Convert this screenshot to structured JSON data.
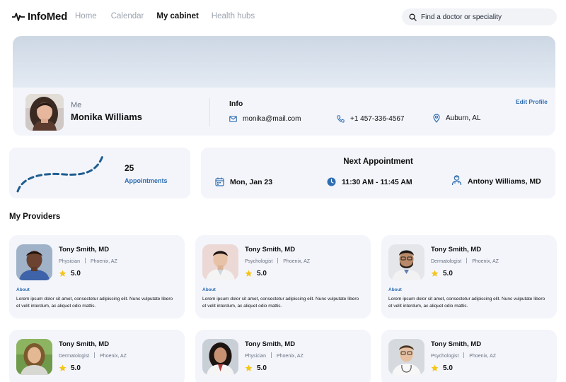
{
  "app": {
    "name": "InfoMed"
  },
  "nav": [
    {
      "label": "Home"
    },
    {
      "label": "Calendar"
    },
    {
      "label": "My cabinet"
    },
    {
      "label": "Health hubs"
    }
  ],
  "nav_active": "My cabinet",
  "search": {
    "placeholder": "Find a doctor or speciality",
    "value": ""
  },
  "profile": {
    "me_label": "Me",
    "name": "Monika Williams",
    "info_title": "Info",
    "edit_label": "Edit Profile",
    "email": "monika@mail.com",
    "phone": "+1 457-336-4567",
    "location": "Auburn, AL"
  },
  "stats": {
    "count": "25",
    "label": "Appointments"
  },
  "next_appointment": {
    "title": "Next Appointment",
    "date": "Mon, Jan 23",
    "time": "11:30 AM - 11:45 AM",
    "doctor": "Antony Williams, MD"
  },
  "providers_section": {
    "title": "My Providers"
  },
  "providers": [
    {
      "name": "Tony Smith, MD",
      "specialty": "Physician",
      "location": "Phoenix, AZ",
      "rating": "5.0",
      "about_label": "About",
      "description": "Lorem ipsum dolor sit amet, consectetur adipiscing elit. Nunc vulputate libero et velit interdum, ac aliquet odio mattis."
    },
    {
      "name": "Tony Smith, MD",
      "specialty": "Psychologist",
      "location": "Phoenix, AZ",
      "rating": "5.0",
      "about_label": "About",
      "description": "Lorem ipsum dolor sit amet, consectetur adipiscing elit. Nunc vulputate libero et velit interdum, ac aliquet odio mattis."
    },
    {
      "name": "Tony Smith, MD",
      "specialty": "Dermatologist",
      "location": "Phoenix, AZ",
      "rating": "5.0",
      "about_label": "About",
      "description": "Lorem ipsum dolor sit amet, consectetur adipiscing elit. Nunc vulputate libero et velit interdum, ac aliquet odio mattis."
    },
    {
      "name": "Tony Smith, MD",
      "specialty": "Dermatologist",
      "location": "Phoenix, AZ",
      "rating": "5.0"
    },
    {
      "name": "Tony Smith, MD",
      "specialty": "Physician",
      "location": "Phoenix, AZ",
      "rating": "5.0"
    },
    {
      "name": "Tony Smith, MD",
      "specialty": "Psychologist",
      "location": "Phoenix, AZ",
      "rating": "5.0"
    }
  ],
  "colors": {
    "accent": "#2f6db0",
    "card": "#f3f5fb",
    "star": "#f5c518",
    "dashed_curve": "#1f5d8f"
  }
}
